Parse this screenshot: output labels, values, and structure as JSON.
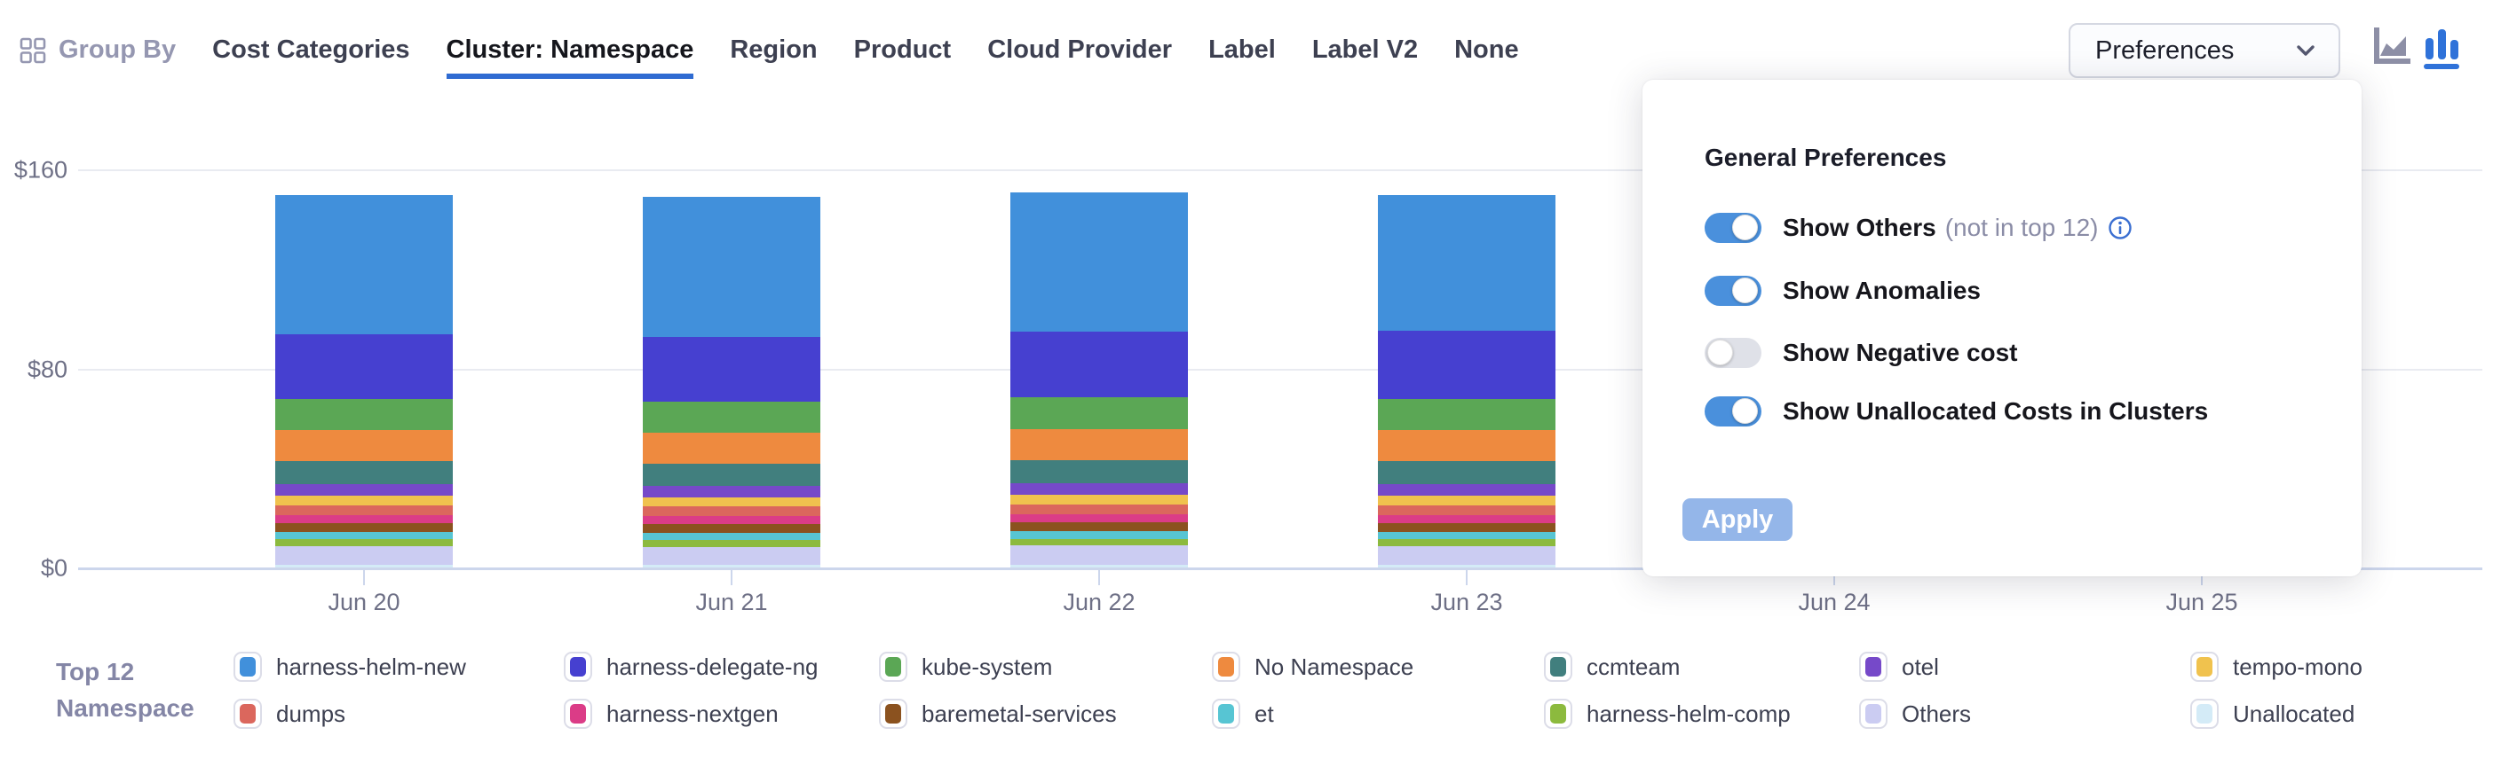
{
  "header": {
    "group_by_label": "Group By",
    "tabs": [
      {
        "label": "Cost Categories",
        "active": false
      },
      {
        "label": "Cluster: Namespace",
        "active": true
      },
      {
        "label": "Region",
        "active": false
      },
      {
        "label": "Product",
        "active": false
      },
      {
        "label": "Cloud Provider",
        "active": false
      },
      {
        "label": "Label",
        "active": false
      },
      {
        "label": "Label V2",
        "active": false
      },
      {
        "label": "None",
        "active": false
      }
    ],
    "preferences_button_label": "Preferences",
    "chart_type_icons": [
      {
        "name": "area-chart-icon",
        "active": false
      },
      {
        "name": "bar-chart-icon",
        "active": true
      }
    ]
  },
  "preferences_panel": {
    "title": "General Preferences",
    "toggles": [
      {
        "label": "Show Others",
        "suffix": "(not in top 12)",
        "has_info_icon": true,
        "on": true
      },
      {
        "label": "Show Anomalies",
        "suffix": "",
        "has_info_icon": false,
        "on": true
      },
      {
        "label": "Show Negative cost",
        "suffix": "",
        "has_info_icon": false,
        "on": false
      },
      {
        "label": "Show Unallocated Costs in Clusters",
        "suffix": "",
        "has_info_icon": false,
        "on": true
      }
    ],
    "apply_label": "Apply"
  },
  "chart_data": {
    "type": "bar",
    "stacked": true,
    "categories": [
      "Jun 20",
      "Jun 21",
      "Jun 22",
      "Jun 23",
      "Jun 24",
      "Jun 25"
    ],
    "ylim": [
      0,
      160
    ],
    "yticks": [
      {
        "label": "$0",
        "value": 0
      },
      {
        "label": "$80",
        "value": 80
      },
      {
        "label": "$160",
        "value": 160
      }
    ],
    "grid": true,
    "legend_position": "bottom",
    "series": [
      {
        "name": "Unallocated",
        "color": "#d4ebf7",
        "values": [
          1.5,
          1.5,
          1.6,
          1.5,
          null,
          null
        ]
      },
      {
        "name": "Others",
        "color": "#cbccf2",
        "values": [
          7.4,
          7.2,
          7.5,
          7.4,
          null,
          null
        ]
      },
      {
        "name": "harness-helm-comp",
        "color": "#8cba3e",
        "values": [
          2.7,
          2.6,
          2.7,
          2.7,
          null,
          null
        ]
      },
      {
        "name": "et",
        "color": "#57c5d3",
        "values": [
          3.0,
          2.9,
          3.0,
          3.0,
          null,
          null
        ]
      },
      {
        "name": "baremetal-services",
        "color": "#8b521f",
        "values": [
          3.6,
          3.5,
          3.6,
          3.6,
          null,
          null
        ]
      },
      {
        "name": "harness-nextgen",
        "color": "#db3c87",
        "values": [
          3.2,
          3.2,
          3.3,
          3.2,
          null,
          null
        ]
      },
      {
        "name": "dumps",
        "color": "#db675d",
        "values": [
          4.0,
          3.9,
          4.0,
          4.0,
          null,
          null
        ]
      },
      {
        "name": "tempo-mono",
        "color": "#f0c24e",
        "values": [
          3.8,
          3.8,
          3.9,
          3.8,
          null,
          null
        ]
      },
      {
        "name": "otel",
        "color": "#7649c9",
        "values": [
          4.5,
          4.4,
          4.5,
          4.5,
          null,
          null
        ]
      },
      {
        "name": "ccmteam",
        "color": "#417f7e",
        "values": [
          9.3,
          9.2,
          9.4,
          9.3,
          null,
          null
        ]
      },
      {
        "name": "No Namespace",
        "color": "#ee8a3f",
        "values": [
          12.5,
          12.4,
          12.6,
          12.5,
          null,
          null
        ]
      },
      {
        "name": "kube-system",
        "color": "#5ba755",
        "values": [
          12.4,
          12.3,
          12.5,
          12.4,
          null,
          null
        ]
      },
      {
        "name": "harness-delegate-ng",
        "color": "#4640d0",
        "values": [
          26.2,
          26.0,
          26.4,
          27.5,
          null,
          null
        ]
      },
      {
        "name": "harness-helm-new",
        "color": "#4190db",
        "values": [
          55.9,
          56.3,
          56.0,
          54.5,
          null,
          null
        ]
      }
    ]
  },
  "legend": {
    "title_lines": [
      "Top 12",
      "Namespace"
    ],
    "columns": [
      [
        {
          "label": "harness-helm-new",
          "color": "#4190db"
        },
        {
          "label": "dumps",
          "color": "#db675d"
        }
      ],
      [
        {
          "label": "harness-delegate-ng",
          "color": "#4640d0"
        },
        {
          "label": "harness-nextgen",
          "color": "#db3c87"
        }
      ],
      [
        {
          "label": "kube-system",
          "color": "#5ba755"
        },
        {
          "label": "baremetal-services",
          "color": "#8b521f"
        }
      ],
      [
        {
          "label": "No Namespace",
          "color": "#ee8a3f"
        },
        {
          "label": "et",
          "color": "#57c5d3"
        }
      ],
      [
        {
          "label": "ccmteam",
          "color": "#417f7e"
        },
        {
          "label": "harness-helm-comp",
          "color": "#8cba3e"
        }
      ],
      [
        {
          "label": "otel",
          "color": "#7649c9"
        },
        {
          "label": "Others",
          "color": "#cbccf2"
        }
      ],
      [
        {
          "label": "tempo-mono",
          "color": "#f0c24e"
        },
        {
          "label": "Unallocated",
          "color": "#d4ebf7"
        }
      ]
    ]
  },
  "colors": {
    "accent_blue": "#2f6bd2",
    "toggle_on": "#4a90dc",
    "gridline": "#e9ebf1",
    "axis_line": "#ccd6ec",
    "axis_text": "#6e7086",
    "tab_text": "#3d4051",
    "tab_text_active": "#15161c"
  }
}
